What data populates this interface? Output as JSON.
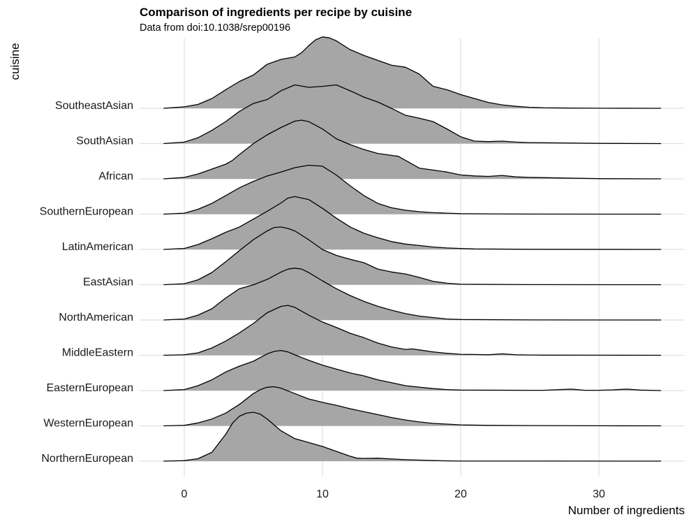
{
  "chart_data": {
    "type": "ridgeline",
    "title": "Comparison of ingredients per recipe by cuisine",
    "subtitle": "Data from doi:10.1038/srep00196",
    "xlabel": "Number of ingredients",
    "ylabel": "cuisine",
    "xlim": [
      -1.5,
      34.5
    ],
    "xticks": [
      0,
      10,
      20,
      30
    ],
    "grid": true,
    "fill_color": "#a6a6a6",
    "line_color": "#000000",
    "grid_color": "#e0e0e0",
    "categories": [
      "NorthernEuropean",
      "WesternEuropean",
      "EasternEuropean",
      "MiddleEastern",
      "NorthAmerican",
      "EastAsian",
      "LatinAmerican",
      "SouthernEuropean",
      "African",
      "SouthAsian",
      "SoutheastAsian"
    ],
    "series": [
      {
        "name": "NorthernEuropean",
        "x": [
          -1.5,
          0,
          1,
          2,
          3,
          3.5,
          4,
          4.5,
          5,
          5.5,
          6,
          7,
          8,
          9,
          10,
          11,
          12,
          12.5,
          13,
          14,
          15,
          16,
          17,
          18,
          19,
          20,
          25,
          34.5
        ],
        "y": [
          0,
          0.01,
          0.05,
          0.18,
          0.55,
          0.78,
          0.92,
          0.98,
          1,
          0.96,
          0.86,
          0.62,
          0.46,
          0.38,
          0.3,
          0.2,
          0.1,
          0.06,
          0.055,
          0.06,
          0.045,
          0.03,
          0.022,
          0.012,
          0.005,
          0.002,
          0.001,
          0
        ]
      },
      {
        "name": "WesternEuropean",
        "x": [
          -1.5,
          0,
          1,
          2,
          3,
          4,
          5,
          5.5,
          6,
          6.5,
          7,
          8,
          9,
          10,
          11,
          12,
          13,
          14,
          15,
          16,
          17,
          18,
          19,
          20,
          22,
          25,
          30,
          34.5
        ],
        "y": [
          0,
          0.01,
          0.06,
          0.14,
          0.26,
          0.44,
          0.66,
          0.74,
          0.79,
          0.8,
          0.77,
          0.66,
          0.55,
          0.48,
          0.42,
          0.35,
          0.29,
          0.23,
          0.17,
          0.12,
          0.08,
          0.05,
          0.035,
          0.02,
          0.01,
          0.005,
          0.002,
          0
        ]
      },
      {
        "name": "EasternEuropean",
        "x": [
          -1.5,
          0,
          1,
          2,
          3,
          4,
          5,
          6,
          6.5,
          7,
          7.5,
          8,
          9,
          10,
          11,
          12,
          13,
          14,
          15,
          16,
          17,
          18,
          19,
          20,
          25,
          26,
          28,
          29,
          30,
          31,
          32,
          33,
          34.5
        ],
        "y": [
          0,
          0.02,
          0.1,
          0.22,
          0.38,
          0.5,
          0.6,
          0.75,
          0.8,
          0.82,
          0.79,
          0.73,
          0.62,
          0.52,
          0.44,
          0.36,
          0.3,
          0.22,
          0.16,
          0.1,
          0.07,
          0.04,
          0.02,
          0.01,
          0.005,
          0.005,
          0.03,
          0.005,
          0.005,
          0.015,
          0.03,
          0.01,
          0
        ]
      },
      {
        "name": "MiddleEastern",
        "x": [
          -1.5,
          0,
          1,
          2,
          3,
          4,
          5,
          6,
          7,
          7.5,
          8,
          9,
          10,
          11,
          12,
          13,
          14,
          15,
          16,
          16.5,
          17,
          18,
          19,
          20,
          21,
          22,
          23,
          24,
          25,
          26,
          30,
          34.5
        ],
        "y": [
          0,
          0.01,
          0.05,
          0.15,
          0.29,
          0.46,
          0.65,
          0.87,
          1,
          1.02,
          0.98,
          0.82,
          0.68,
          0.57,
          0.45,
          0.36,
          0.25,
          0.17,
          0.12,
          0.13,
          0.11,
          0.07,
          0.04,
          0.02,
          0.015,
          0.01,
          0.03,
          0.01,
          0.005,
          0.003,
          0.001,
          0
        ]
      },
      {
        "name": "NorthAmerican",
        "x": [
          -1.5,
          0,
          1,
          2,
          3,
          4,
          5,
          6,
          7,
          7.5,
          8,
          8.5,
          9,
          10,
          11,
          12,
          13,
          14,
          15,
          16,
          17,
          18,
          19,
          20,
          25,
          34.5
        ],
        "y": [
          0,
          0.02,
          0.1,
          0.23,
          0.45,
          0.64,
          0.72,
          0.83,
          0.98,
          1.04,
          1.06,
          1.04,
          0.97,
          0.8,
          0.64,
          0.5,
          0.38,
          0.28,
          0.2,
          0.13,
          0.08,
          0.05,
          0.02,
          0.01,
          0.002,
          0
        ]
      },
      {
        "name": "EastAsian",
        "x": [
          -1.5,
          0,
          1,
          2,
          3,
          4,
          5,
          6,
          6.5,
          7,
          7.5,
          8,
          9,
          10,
          11,
          12,
          13,
          14,
          15,
          16,
          17,
          18,
          19,
          20,
          25,
          34.5
        ],
        "y": [
          0,
          0.02,
          0.1,
          0.25,
          0.47,
          0.7,
          0.92,
          1.1,
          1.17,
          1.18,
          1.15,
          1.1,
          0.92,
          0.72,
          0.6,
          0.52,
          0.45,
          0.32,
          0.26,
          0.22,
          0.15,
          0.07,
          0.03,
          0.01,
          0.002,
          0
        ]
      },
      {
        "name": "LatinAmerican",
        "x": [
          -1.5,
          0,
          1,
          2,
          3,
          4,
          5,
          6,
          7,
          7.5,
          8,
          9,
          10,
          11,
          12,
          13,
          14,
          15,
          16,
          17,
          18,
          19,
          20,
          21,
          25,
          34.5
        ],
        "y": [
          0,
          0.02,
          0.1,
          0.22,
          0.35,
          0.46,
          0.62,
          0.78,
          0.95,
          1.05,
          1.08,
          1.02,
          0.84,
          0.64,
          0.46,
          0.33,
          0.24,
          0.16,
          0.11,
          0.08,
          0.05,
          0.03,
          0.02,
          0.01,
          0.003,
          0
        ]
      },
      {
        "name": "SouthernEuropean",
        "x": [
          -1.5,
          0,
          1,
          2,
          3,
          4,
          5,
          6,
          7,
          8,
          9,
          10,
          11,
          12,
          13,
          14,
          15,
          16,
          17,
          18,
          19,
          20,
          22,
          25,
          34.5
        ],
        "y": [
          0,
          0.02,
          0.1,
          0.22,
          0.38,
          0.54,
          0.67,
          0.78,
          0.86,
          0.95,
          1.0,
          0.98,
          0.8,
          0.58,
          0.38,
          0.22,
          0.13,
          0.08,
          0.05,
          0.03,
          0.02,
          0.01,
          0.005,
          0.002,
          0
        ]
      },
      {
        "name": "African",
        "x": [
          -1.5,
          0,
          1,
          2,
          3,
          3.5,
          4,
          5,
          6,
          7,
          8,
          8.5,
          9,
          10,
          11,
          12,
          13,
          14,
          15,
          15.5,
          16,
          17,
          18,
          19,
          20,
          21,
          22,
          23,
          24,
          25,
          30,
          34.5
        ],
        "y": [
          0,
          0.03,
          0.1,
          0.2,
          0.3,
          0.38,
          0.5,
          0.72,
          0.9,
          1.05,
          1.18,
          1.2,
          1.17,
          1.02,
          0.82,
          0.7,
          0.6,
          0.52,
          0.48,
          0.46,
          0.38,
          0.22,
          0.18,
          0.14,
          0.08,
          0.06,
          0.05,
          0.07,
          0.04,
          0.03,
          0.005,
          0
        ]
      },
      {
        "name": "SouthAsian",
        "x": [
          -1.5,
          0,
          1,
          2,
          3,
          4,
          5,
          6,
          7,
          8,
          9,
          10,
          11,
          12,
          13,
          14,
          15,
          16,
          17,
          18,
          19,
          20,
          21,
          22,
          23,
          24,
          25,
          30,
          34.5
        ],
        "y": [
          0,
          0.03,
          0.12,
          0.27,
          0.45,
          0.66,
          0.82,
          0.9,
          1.08,
          1.2,
          1.15,
          1.17,
          1.2,
          1.08,
          0.95,
          0.85,
          0.72,
          0.58,
          0.52,
          0.45,
          0.3,
          0.14,
          0.05,
          0.04,
          0.05,
          0.03,
          0.02,
          0.005,
          0
        ]
      },
      {
        "name": "SoutheastAsian",
        "x": [
          -1.5,
          0,
          1,
          2,
          3,
          4,
          5,
          6,
          7,
          8,
          8.5,
          9,
          9.5,
          10,
          10.5,
          11,
          12,
          13,
          14,
          15,
          16,
          17,
          18,
          19,
          20,
          21,
          22,
          23,
          24,
          25,
          26,
          28,
          30,
          34.5
        ],
        "y": [
          0,
          0.03,
          0.08,
          0.2,
          0.38,
          0.55,
          0.68,
          0.9,
          1.0,
          1.05,
          1.14,
          1.28,
          1.4,
          1.46,
          1.44,
          1.38,
          1.2,
          1.08,
          0.98,
          0.88,
          0.84,
          0.7,
          0.45,
          0.38,
          0.28,
          0.2,
          0.12,
          0.07,
          0.04,
          0.02,
          0.01,
          0.005,
          0.002,
          0
        ]
      }
    ]
  }
}
